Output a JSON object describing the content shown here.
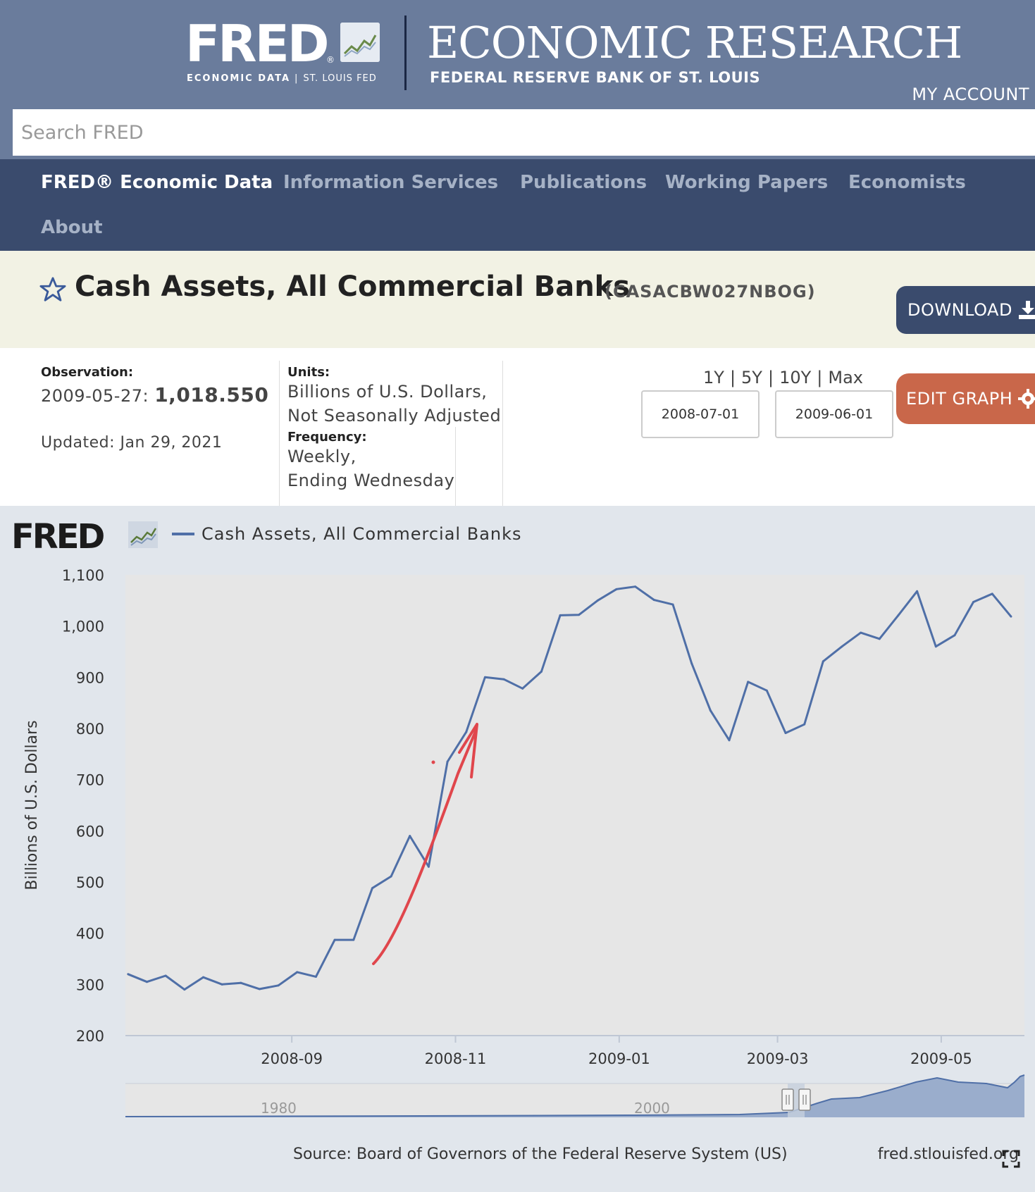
{
  "header": {
    "fred_logo_text": "FRED",
    "fred_logo_reg": "®",
    "fred_subtitle_left": "ECONOMIC DATA",
    "fred_subtitle_sep": "|",
    "fred_subtitle_right": "ST. LOUIS FED",
    "econ_research": "ECONOMIC RESEARCH",
    "bank_name": "FEDERAL RESERVE BANK OF ST. LOUIS",
    "my_account": "MY ACCOUNT",
    "search_placeholder": "Search FRED"
  },
  "nav": {
    "items": [
      {
        "label": "FRED® Economic Data",
        "active": true
      },
      {
        "label": "Information Services"
      },
      {
        "label": "Publications"
      },
      {
        "label": "Working Papers"
      },
      {
        "label": "Economists"
      },
      {
        "label": "About"
      }
    ]
  },
  "series": {
    "title": "Cash Assets, All Commercial Banks",
    "id": "(CASACBW027NBOG)",
    "download_label": "DOWNLOAD"
  },
  "meta": {
    "observation_label": "Observation:",
    "observation_date": "2009-05-27:",
    "observation_value": "1,018.550",
    "updated": "Updated: Jan 29, 2021",
    "units_label": "Units:",
    "units_line1": "Billions of U.S. Dollars,",
    "units_line2": "Not Seasonally Adjusted",
    "frequency_label": "Frequency:",
    "frequency_line1": "Weekly,",
    "frequency_line2": "Ending Wednesday",
    "range_links": [
      "1Y",
      "5Y",
      "10Y",
      "Max"
    ],
    "start_date": "2008-07-01",
    "end_date": "2009-06-01",
    "edit_graph_label": "EDIT GRAPH"
  },
  "chart_data": {
    "type": "line",
    "legend_logo": "FRED",
    "series": [
      {
        "name": "Cash Assets, All Commercial Banks",
        "color": "#4f6fa7",
        "x": [
          "2008-07-02",
          "2008-07-09",
          "2008-07-16",
          "2008-07-23",
          "2008-07-30",
          "2008-08-06",
          "2008-08-13",
          "2008-08-20",
          "2008-08-27",
          "2008-09-03",
          "2008-09-10",
          "2008-09-17",
          "2008-09-24",
          "2008-10-01",
          "2008-10-08",
          "2008-10-15",
          "2008-10-22",
          "2008-10-29",
          "2008-11-05",
          "2008-11-12",
          "2008-11-19",
          "2008-11-26",
          "2008-12-03",
          "2008-12-10",
          "2008-12-17",
          "2008-12-24",
          "2008-12-31",
          "2009-01-07",
          "2009-01-14",
          "2009-01-21",
          "2009-01-28",
          "2009-02-04",
          "2009-02-11",
          "2009-02-18",
          "2009-02-25",
          "2009-03-04",
          "2009-03-11",
          "2009-03-18",
          "2009-03-25",
          "2009-04-01",
          "2009-04-08",
          "2009-04-15",
          "2009-04-22",
          "2009-04-29",
          "2009-05-06",
          "2009-05-13",
          "2009-05-20",
          "2009-05-27"
        ],
        "values": [
          320,
          305,
          317,
          290,
          314,
          300,
          303,
          291,
          298,
          324,
          315,
          387,
          387,
          488,
          511,
          590,
          530,
          735,
          793,
          900,
          896,
          878,
          911,
          1021,
          1022,
          1050,
          1072,
          1077,
          1051,
          1042,
          927,
          835,
          777,
          891,
          874,
          791,
          808,
          931,
          960,
          987,
          975,
          1021,
          1068,
          960,
          982,
          1047,
          1063,
          1018.55
        ]
      }
    ],
    "xlabel": "",
    "ylabel": "Billions of U.S. Dollars",
    "ylim": [
      200,
      1100
    ],
    "y_ticks": [
      "1,100",
      "1,000",
      "900",
      "800",
      "700",
      "600",
      "500",
      "400",
      "300",
      "200"
    ],
    "x_ticks": [
      "2008-09",
      "2008-11",
      "2009-01",
      "2009-03",
      "2009-05"
    ],
    "grid": false,
    "navigator_labels": [
      "1980",
      "2000"
    ],
    "source": "Source: Board of Governors of the Federal Reserve System (US)",
    "credit": "fred.stlouisfed.org"
  }
}
